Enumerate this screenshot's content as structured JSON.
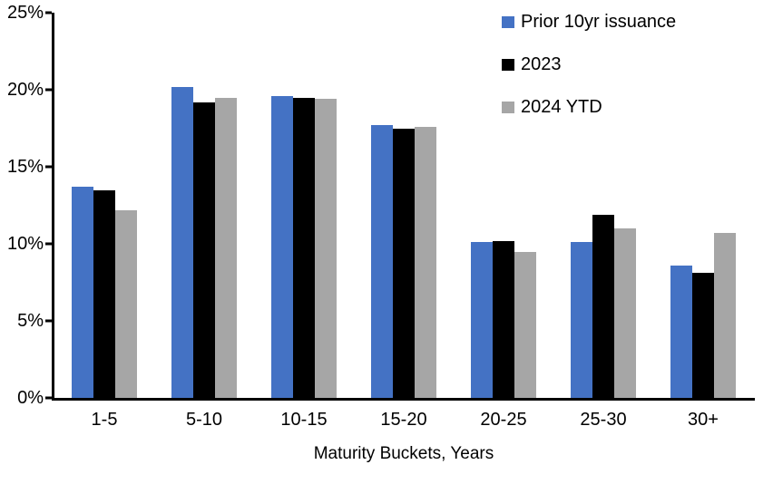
{
  "chart_data": {
    "type": "bar",
    "title": "",
    "categories": [
      "1-5",
      "5-10",
      "10-15",
      "15-20",
      "20-25",
      "25-30",
      "30+"
    ],
    "series": [
      {
        "name": "Prior 10yr issuance",
        "color": "#4472C4",
        "values": [
          13.7,
          20.2,
          19.6,
          17.7,
          10.1,
          10.1,
          8.6
        ]
      },
      {
        "name": "2023",
        "color": "#000000",
        "values": [
          13.5,
          19.2,
          19.5,
          17.5,
          10.2,
          11.9,
          8.1
        ]
      },
      {
        "name": "2024 YTD",
        "color": "#A6A6A6",
        "values": [
          12.2,
          19.5,
          19.4,
          17.6,
          9.5,
          11.0,
          10.7
        ]
      }
    ],
    "xlabel": "Maturity Buckets, Years",
    "ylabel": "",
    "ylim": [
      0,
      25
    ],
    "yticks": [
      {
        "value": 0,
        "label": "0%"
      },
      {
        "value": 5,
        "label": "5%"
      },
      {
        "value": 10,
        "label": "10%"
      },
      {
        "value": 15,
        "label": "15%"
      },
      {
        "value": 20,
        "label": "20%"
      },
      {
        "value": 25,
        "label": "25%"
      }
    ],
    "grid": false,
    "legend_position": "top-right",
    "axis_color": "#000000",
    "background": "#FFFFFF"
  }
}
